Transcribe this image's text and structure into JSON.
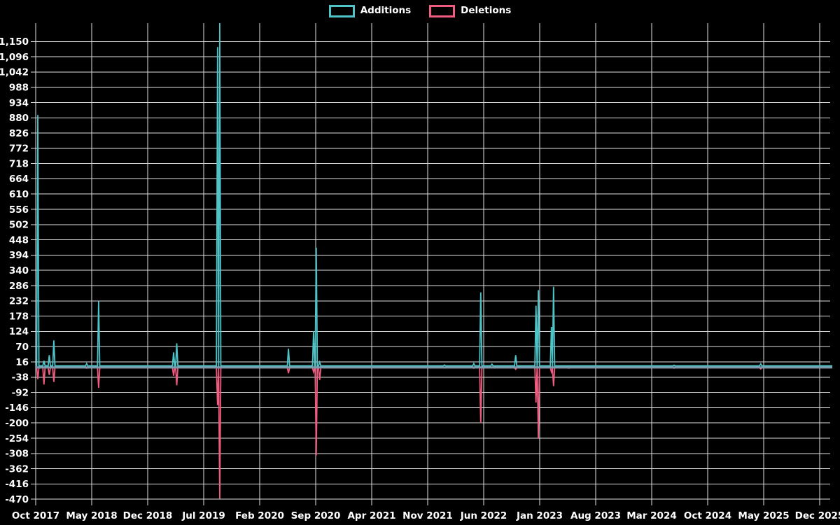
{
  "chart_data": {
    "type": "line",
    "title": "",
    "grid": true,
    "background": "#000000",
    "gridline_color": "#f2f2f2",
    "text_color": "#ffffff",
    "baseline_color": "#7d9aab",
    "legend_position": "top-center",
    "xlabel": "",
    "ylabel": "",
    "ylim": [
      -470,
      1215
    ],
    "y_axis": {
      "tick_values": [
        1150,
        1096,
        1042,
        988,
        934,
        880,
        826,
        772,
        718,
        664,
        610,
        556,
        502,
        448,
        394,
        340,
        286,
        232,
        178,
        124,
        70,
        16,
        -38,
        -92,
        -146,
        -200,
        -254,
        -308,
        -362,
        -416,
        -470
      ]
    },
    "x_axis": {
      "start_month": "2017-10",
      "tick_labels": [
        "Oct 2017",
        "May 2018",
        "Dec 2018",
        "Jul 2019",
        "Feb 2020",
        "Sep 2020",
        "Apr 2021",
        "Nov 2021",
        "Jun 2022",
        "Jan 2023",
        "Aug 2023",
        "Mar 2024",
        "Oct 2024",
        "May 2025",
        "Dec 2025"
      ]
    },
    "series": [
      {
        "name": "Additions",
        "color": "#4ec4c9",
        "points": [
          {
            "date": "2017-10-09",
            "value": 890
          },
          {
            "date": "2017-11-02",
            "value": 20
          },
          {
            "date": "2017-11-22",
            "value": 40
          },
          {
            "date": "2017-12-09",
            "value": 92
          },
          {
            "date": "2018-04-12",
            "value": 10
          },
          {
            "date": "2018-05-27",
            "value": 230
          },
          {
            "date": "2019-03-08",
            "value": 50
          },
          {
            "date": "2019-03-20",
            "value": 82
          },
          {
            "date": "2019-08-23",
            "value": 1130
          },
          {
            "date": "2019-09-01",
            "value": 1215
          },
          {
            "date": "2020-05-19",
            "value": 63
          },
          {
            "date": "2020-08-23",
            "value": 125
          },
          {
            "date": "2020-09-03",
            "value": 420
          },
          {
            "date": "2020-09-16",
            "value": 15
          },
          {
            "date": "2022-01-04",
            "value": 5
          },
          {
            "date": "2022-04-24",
            "value": 10
          },
          {
            "date": "2022-05-20",
            "value": 262
          },
          {
            "date": "2022-07-02",
            "value": 8
          },
          {
            "date": "2022-10-01",
            "value": 40
          },
          {
            "date": "2022-12-17",
            "value": 215
          },
          {
            "date": "2022-12-26",
            "value": 270
          },
          {
            "date": "2023-02-15",
            "value": 140
          },
          {
            "date": "2023-02-23",
            "value": 282
          },
          {
            "date": "2024-05-25",
            "value": 4
          },
          {
            "date": "2025-04-20",
            "value": 9
          }
        ]
      },
      {
        "name": "Deletions",
        "color": "#f05c80",
        "points": [
          {
            "date": "2017-10-09",
            "value": -45
          },
          {
            "date": "2017-11-02",
            "value": -64
          },
          {
            "date": "2017-11-22",
            "value": -30
          },
          {
            "date": "2017-12-09",
            "value": -55
          },
          {
            "date": "2018-04-12",
            "value": -6
          },
          {
            "date": "2018-05-27",
            "value": -76
          },
          {
            "date": "2019-03-08",
            "value": -33
          },
          {
            "date": "2019-03-20",
            "value": -67
          },
          {
            "date": "2019-08-23",
            "value": -137
          },
          {
            "date": "2019-09-01",
            "value": -468
          },
          {
            "date": "2020-05-19",
            "value": -24
          },
          {
            "date": "2020-08-23",
            "value": -20
          },
          {
            "date": "2020-09-03",
            "value": -315
          },
          {
            "date": "2020-09-16",
            "value": -48
          },
          {
            "date": "2022-04-24",
            "value": -6
          },
          {
            "date": "2022-05-20",
            "value": -200
          },
          {
            "date": "2022-10-01",
            "value": -10
          },
          {
            "date": "2022-12-17",
            "value": -128
          },
          {
            "date": "2022-12-26",
            "value": -256
          },
          {
            "date": "2023-02-15",
            "value": -20
          },
          {
            "date": "2023-02-23",
            "value": -70
          },
          {
            "date": "2023-04-21",
            "value": -6
          },
          {
            "date": "2024-05-25",
            "value": -6
          },
          {
            "date": "2025-04-20",
            "value": -9
          }
        ]
      }
    ]
  }
}
